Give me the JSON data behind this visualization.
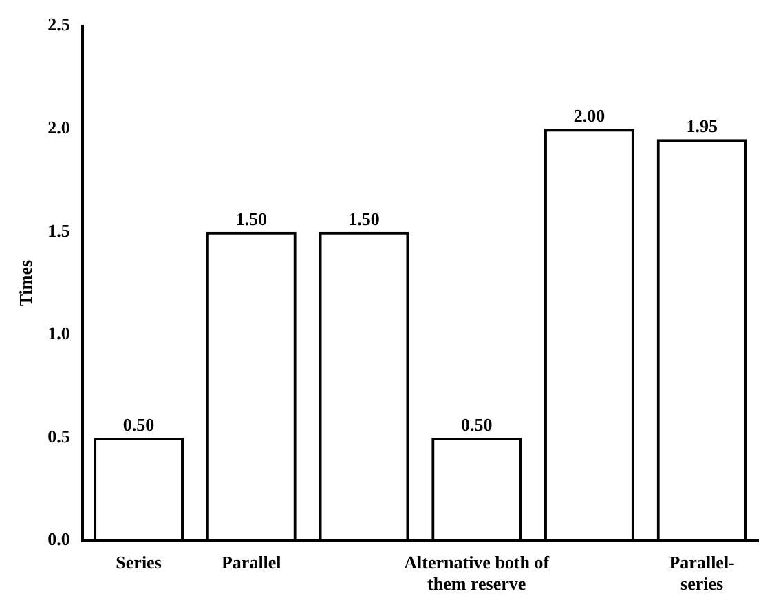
{
  "chart_data": {
    "type": "bar",
    "ylabel": "Times",
    "categories": [
      "Series",
      "Parallel",
      null,
      "Alternative both of them reserve",
      null,
      "Parallel-series"
    ],
    "values": [
      0.5,
      1.5,
      1.5,
      0.5,
      2.0,
      1.95
    ],
    "value_labels": [
      "0.50",
      "1.50",
      "1.50",
      "0.50",
      "2.00",
      "1.95"
    ],
    "color": "#000000",
    "ylim": [
      0,
      2.5
    ],
    "yticks": [
      {
        "value": 0,
        "label": "0.0"
      },
      0.5,
      {
        "value": 1,
        "label": "1.0"
      },
      1.5,
      {
        "value": 2,
        "label": "2.0"
      },
      2.5
    ],
    "grid": false,
    "legend": false
  }
}
